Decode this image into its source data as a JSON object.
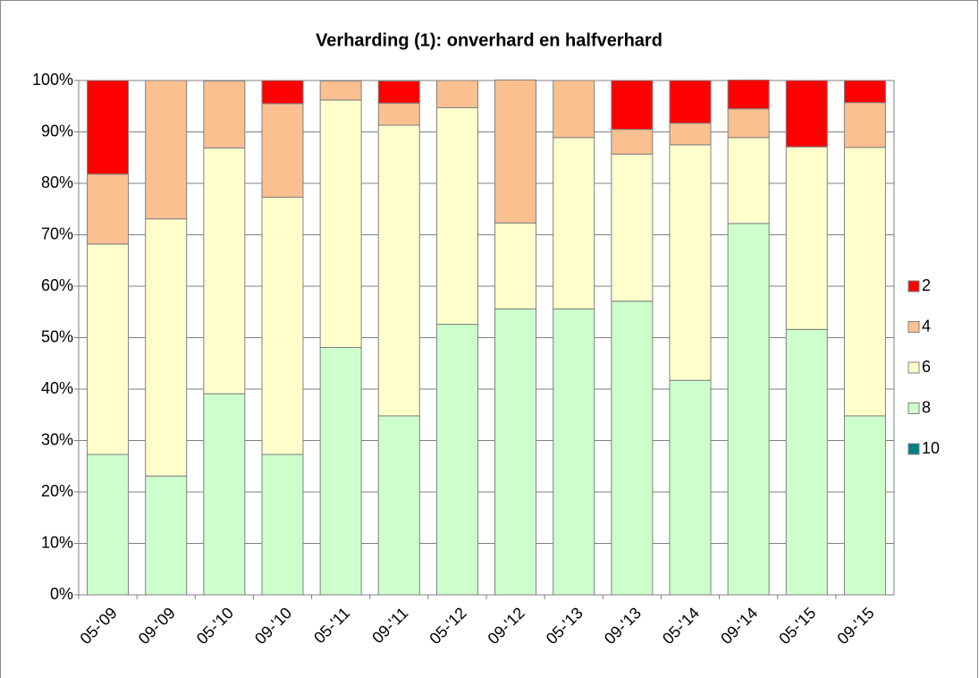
{
  "chart_data": {
    "type": "stacked_bar",
    "title": "Verharding (1): onverhard en halfverhard",
    "categories": [
      "05-'09",
      "09-'09",
      "05-'10",
      "09-'10",
      "05-'11",
      "09-'11",
      "05-'12",
      "09-'12",
      "05-'13",
      "09-'13",
      "05-'14",
      "09-'14",
      "05-'15",
      "09-'15"
    ],
    "series": [
      {
        "name": "2",
        "color": "#ff0000",
        "values": [
          18.2,
          0,
          0,
          4.5,
          0,
          4.3,
          0,
          0,
          0,
          9.5,
          8.3,
          5.6,
          12.9,
          4.3
        ]
      },
      {
        "name": "4",
        "color": "#fac090",
        "values": [
          13.6,
          26.9,
          13.0,
          18.2,
          3.7,
          4.3,
          5.3,
          27.8,
          11.1,
          4.8,
          4.2,
          5.6,
          0,
          8.7
        ]
      },
      {
        "name": "6",
        "color": "#ffffcc",
        "values": [
          40.9,
          50,
          47.8,
          50,
          48.1,
          56.5,
          42.1,
          16.7,
          33.3,
          28.6,
          45.8,
          16.7,
          35.5,
          52.2
        ]
      },
      {
        "name": "8",
        "color": "#ccffcc",
        "values": [
          27.3,
          23.1,
          39.1,
          27.3,
          48.1,
          34.8,
          52.6,
          55.6,
          55.6,
          57.1,
          41.7,
          72.2,
          51.6,
          34.8
        ]
      },
      {
        "name": "10",
        "color": "#008080",
        "values": [
          0,
          0,
          0,
          0,
          0,
          0,
          0,
          0,
          0,
          0,
          0,
          0,
          0,
          0
        ]
      }
    ],
    "ylim": [
      0,
      100
    ],
    "yticks": [
      {
        "value": 0,
        "label": "0%"
      },
      {
        "value": 10,
        "label": "10%"
      },
      {
        "value": 20,
        "label": "20%"
      },
      {
        "value": 30,
        "label": "30%"
      },
      {
        "value": 40,
        "label": "40%"
      },
      {
        "value": 50,
        "label": "50%"
      },
      {
        "value": 60,
        "label": "60%"
      },
      {
        "value": 70,
        "label": "70%"
      },
      {
        "value": 80,
        "label": "80%"
      },
      {
        "value": 90,
        "label": "90%"
      },
      {
        "value": 100,
        "label": "100%"
      }
    ],
    "grid": true,
    "legend": "right"
  }
}
